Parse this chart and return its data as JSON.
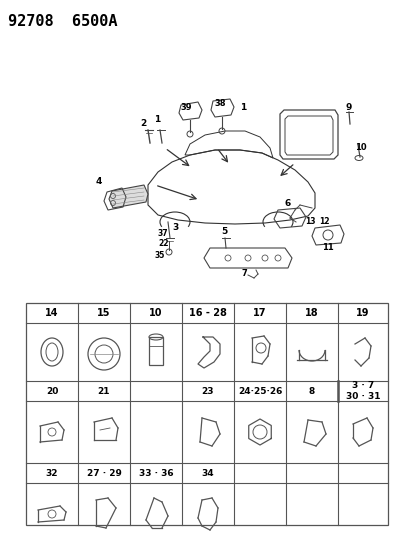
{
  "title": "92708  6500A",
  "bg_color": "#ffffff",
  "line_color": "#000000",
  "title_fontsize": 11,
  "col_labels_row1": [
    "14",
    "15",
    "10",
    "16 - 28",
    "17",
    "18",
    "19"
  ],
  "col_labels_row2": [
    "20",
    "21",
    "",
    "23",
    "24·25·26",
    "8",
    "3 · 7\n30 · 31"
  ],
  "col_labels_row3": [
    "32",
    "27 · 29",
    "33 · 36",
    "34",
    "",
    "",
    ""
  ]
}
